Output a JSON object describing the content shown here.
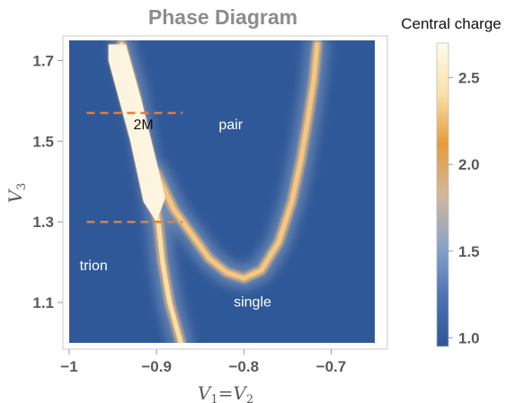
{
  "chart_data": {
    "type": "heatmap",
    "title": "Phase Diagram",
    "xlabel": {
      "main": "V",
      "sub1": "1",
      "eq": "=",
      "main2": "V",
      "sub2": "2"
    },
    "ylabel": {
      "main": "V",
      "sub": "3"
    },
    "xlim": [
      -1.0,
      -0.65
    ],
    "ylim": [
      1.0,
      1.75
    ],
    "x_ticks": [
      -1.0,
      -0.9,
      -0.8,
      -0.7
    ],
    "x_tick_labels": [
      "−1",
      "−0.9",
      "−0.8",
      "−0.7"
    ],
    "y_ticks": [
      1.1,
      1.3,
      1.5,
      1.7
    ],
    "y_tick_labels": [
      "1.1",
      "1.3",
      "1.5",
      "1.7"
    ],
    "grid": false,
    "colorbar": {
      "title": "Central charge",
      "range": [
        0.95,
        2.7
      ],
      "ticks": [
        1.0,
        1.5,
        2.0,
        2.5
      ],
      "tick_labels": [
        "1.0",
        "1.5",
        "2.0",
        "2.5"
      ],
      "colormap": [
        "#2e5597",
        "#4a72b4",
        "#8aa5c8",
        "#d2b89a",
        "#e89a3c",
        "#fbe1a8",
        "#fffbea"
      ]
    },
    "dashed_lines": [
      {
        "y": 1.57,
        "x_range": [
          -0.98,
          -0.87
        ],
        "color": "#e67e30"
      },
      {
        "y": 1.3,
        "x_range": [
          -0.98,
          -0.87
        ],
        "color": "#e67e30"
      }
    ],
    "region_labels": [
      {
        "text": "2M",
        "x": -0.915,
        "y": 1.53,
        "color": "#111111"
      },
      {
        "text": "pair",
        "x": -0.815,
        "y": 1.53,
        "color": "#ffffff"
      },
      {
        "text": "trion",
        "x": -0.972,
        "y": 1.18,
        "color": "#ffffff"
      },
      {
        "text": "single",
        "x": -0.79,
        "y": 1.09,
        "color": "#ffffff"
      }
    ],
    "phase_boundaries": [
      {
        "name": "trion boundary",
        "points": [
          [
            -0.94,
            1.74
          ],
          [
            -0.925,
            1.62
          ],
          [
            -0.915,
            1.5
          ],
          [
            -0.905,
            1.38
          ],
          [
            -0.898,
            1.3
          ],
          [
            -0.893,
            1.2
          ],
          [
            -0.885,
            1.1
          ],
          [
            -0.872,
            1.0
          ]
        ],
        "value": 2.4
      },
      {
        "name": "single–pair boundary",
        "points": [
          [
            -0.9,
            1.42
          ],
          [
            -0.88,
            1.33
          ],
          [
            -0.86,
            1.27
          ],
          [
            -0.84,
            1.21
          ],
          [
            -0.82,
            1.175
          ],
          [
            -0.8,
            1.16
          ],
          [
            -0.78,
            1.18
          ],
          [
            -0.76,
            1.25
          ],
          [
            -0.745,
            1.35
          ],
          [
            -0.735,
            1.45
          ],
          [
            -0.727,
            1.55
          ],
          [
            -0.72,
            1.65
          ],
          [
            -0.716,
            1.74
          ]
        ],
        "value": 2.3
      }
    ],
    "bright_region": {
      "name": "2M region",
      "polygon": [
        [
          -0.955,
          1.74
        ],
        [
          -0.935,
          1.74
        ],
        [
          -0.917,
          1.6
        ],
        [
          -0.9,
          1.45
        ],
        [
          -0.89,
          1.36
        ],
        [
          -0.9,
          1.3
        ],
        [
          -0.915,
          1.35
        ],
        [
          -0.93,
          1.5
        ],
        [
          -0.955,
          1.7
        ]
      ],
      "value": 2.7
    }
  }
}
